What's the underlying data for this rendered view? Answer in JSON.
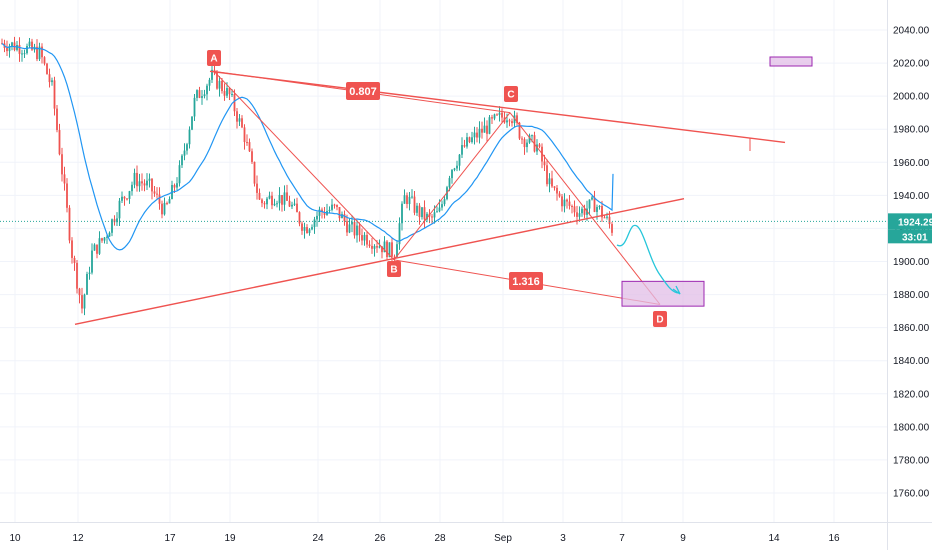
{
  "chart_data": {
    "type": "candlestick",
    "y_axis": {
      "ticks": [
        "2040.00",
        "2020.00",
        "2000.00",
        "1980.00",
        "1960.00",
        "1940.00",
        "1920.00",
        "1900.00",
        "1880.00",
        "1860.00",
        "1840.00",
        "1820.00",
        "1800.00",
        "1780.00",
        "1760.00"
      ],
      "range": [
        1745,
        2058
      ]
    },
    "x_axis": {
      "ticks": [
        "10",
        "12",
        "17",
        "19",
        "24",
        "26",
        "28",
        "Sep",
        "3",
        "7",
        "9",
        "14",
        "16"
      ]
    },
    "current_price": "1924.29",
    "countdown": "33:01",
    "pattern_points": [
      {
        "label": "A",
        "price": 2015
      },
      {
        "label": "B",
        "price": 1901
      },
      {
        "label": "C",
        "price": 1990
      },
      {
        "label": "D",
        "price": 1874
      }
    ],
    "ratios": [
      "0.807",
      "1.316"
    ],
    "triangle_lines": {
      "upper": [
        2015,
        1972
      ],
      "lower": [
        1862,
        1938
      ]
    },
    "target_zone": {
      "price_high": 1888,
      "price_low": 1873
    },
    "colors": {
      "up": "#26a69a",
      "down": "#ef5350",
      "ma": "#2196f3",
      "pattern": "#ef5350",
      "zone_fill": "#e1bee7",
      "zone_border": "#9c27b0",
      "price_tag": "#26a69a"
    }
  }
}
